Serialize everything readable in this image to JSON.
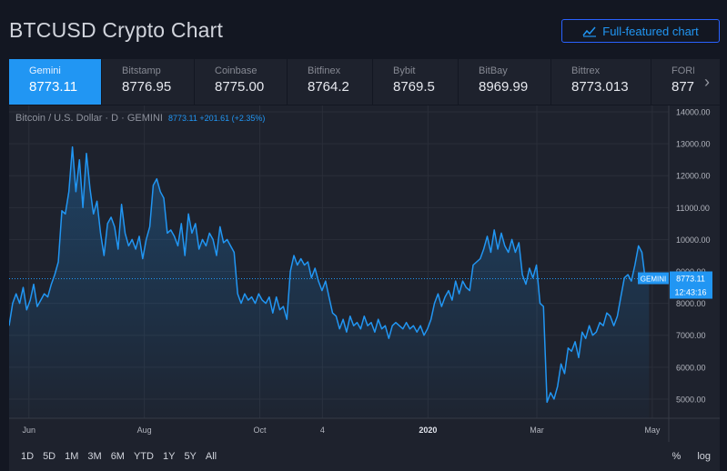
{
  "page_title": "BTCUSD Crypto Chart",
  "full_button_label": "Full-featured chart",
  "exchanges": [
    {
      "name": "Gemini",
      "price": "8773.11",
      "active": true
    },
    {
      "name": "Bitstamp",
      "price": "8776.95"
    },
    {
      "name": "Coinbase",
      "price": "8775.00"
    },
    {
      "name": "Bitfinex",
      "price": "8764.2"
    },
    {
      "name": "Bybit",
      "price": "8769.5"
    },
    {
      "name": "BitBay",
      "price": "8969.99"
    },
    {
      "name": "Bittrex",
      "price": "8773.013"
    },
    {
      "name": "FORE",
      "price": "877"
    }
  ],
  "legend": {
    "symbol": "Bitcoin / U.S. Dollar · D · GEMINI",
    "value": "8773.11  +201.61 (+2.35%)"
  },
  "price_tag": {
    "exchange": "GEMINI",
    "price": "8773.11",
    "countdown": "12:43:16"
  },
  "timeframes": [
    "1D",
    "5D",
    "1M",
    "3M",
    "6M",
    "YTD",
    "1Y",
    "5Y",
    "All"
  ],
  "scale_buttons": [
    "%",
    "log"
  ],
  "colors": {
    "line": "#2196f3",
    "background": "#1e222d",
    "page": "#131722",
    "active_tab": "#2196f3"
  },
  "chart_data": {
    "type": "area",
    "title": "",
    "y_ticks": [
      "14000.00",
      "13000.00",
      "12000.00",
      "11000.00",
      "10000.00",
      "9000.00",
      "8000.00",
      "7000.00",
      "6000.00",
      "5000.00"
    ],
    "ylim": [
      4400,
      14200
    ],
    "x_ticks": [
      {
        "label": "Jun",
        "t": 0.03
      },
      {
        "label": "Aug",
        "t": 0.205
      },
      {
        "label": "Oct",
        "t": 0.38
      },
      {
        "label": "4",
        "t": 0.475
      },
      {
        "label": "2020",
        "t": 0.635
      },
      {
        "label": "Mar",
        "t": 0.8
      },
      {
        "label": "May",
        "t": 0.975
      }
    ],
    "series": [
      {
        "values": [
          7300,
          8000,
          8300,
          8000,
          8500,
          7800,
          8100,
          8600,
          7900,
          8100,
          8300,
          8200,
          8600,
          8900,
          9300,
          10900,
          10800,
          11500,
          12900,
          11500,
          12500,
          11000,
          12700,
          11600,
          10800,
          11200,
          10200,
          9500,
          10500,
          10700,
          10400,
          9700,
          11100,
          10200,
          9800,
          10000,
          9700,
          10100,
          9400,
          10000,
          10400,
          11700,
          11900,
          11500,
          11300,
          10200,
          10300,
          10100,
          9800,
          10500,
          9500,
          10800,
          10200,
          10500,
          9700,
          10000,
          9800,
          10200,
          10000,
          9500,
          10400,
          9900,
          10000,
          9800,
          9600,
          8300,
          8000,
          8300,
          8100,
          8200,
          8000,
          8300,
          8100,
          8000,
          8200,
          7700,
          8200,
          7800,
          7900,
          7500,
          9000,
          9500,
          9200,
          9400,
          9200,
          9300,
          8800,
          9100,
          8700,
          8400,
          8700,
          8200,
          7700,
          7600,
          7200,
          7500,
          7100,
          7600,
          7300,
          7400,
          7200,
          7600,
          7300,
          7400,
          7100,
          7500,
          7200,
          7300,
          6900,
          7300,
          7400,
          7300,
          7200,
          7400,
          7200,
          7300,
          7100,
          7300,
          7000,
          7200,
          7500,
          8000,
          8300,
          7900,
          8200,
          8400,
          8100,
          8700,
          8300,
          8700,
          8500,
          8400,
          9200,
          9300,
          9400,
          9700,
          10100,
          9600,
          10300,
          9700,
          10200,
          9800,
          9600,
          10000,
          9600,
          9900,
          8900,
          8600,
          9100,
          8800,
          9200,
          8000,
          7900,
          4900,
          5200,
          5000,
          5400,
          6100,
          5800,
          6600,
          6500,
          6800,
          6300,
          7100,
          6900,
          7300,
          7000,
          7100,
          7400,
          7300,
          7700,
          7600,
          7300,
          7600,
          8200,
          8800,
          8900,
          8700,
          9200,
          9800,
          9600,
          8700,
          8773
        ]
      }
    ]
  }
}
